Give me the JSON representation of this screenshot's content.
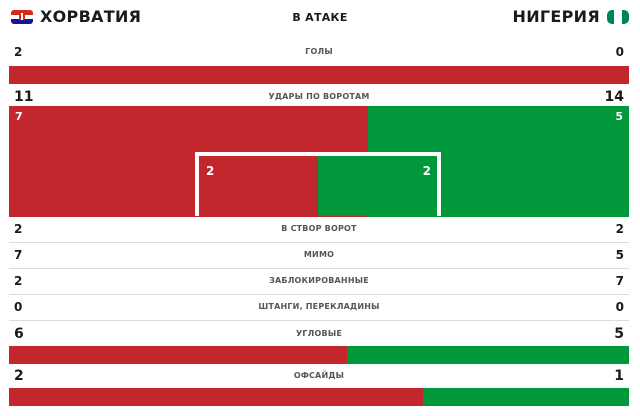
{
  "header": {
    "home_team": "ХОРВАТИЯ",
    "away_team": "НИГЕРИЯ",
    "section_title": "В АТАКЕ"
  },
  "icons": {
    "home_flag": "croatia-flag-icon",
    "away_flag": "nigeria-flag-icon"
  },
  "colors": {
    "home": "#c1272d",
    "away": "#00983a"
  },
  "stats": {
    "goals": {
      "label": "ГОЛЫ",
      "home": "2",
      "away": "0",
      "home_share": 1.0
    },
    "shots": {
      "label": "УДАРЫ ПО ВОРОТАМ",
      "home": "11",
      "away": "14"
    },
    "shots_off_target_graphic": {
      "home": "7",
      "away": "5"
    },
    "shots_on_target_graphic": {
      "home": "2",
      "away": "2"
    },
    "on_target": {
      "label": "В СТВОР ВОРОТ",
      "home": "2",
      "away": "2"
    },
    "wide": {
      "label": "МИМО",
      "home": "7",
      "away": "5"
    },
    "blocked": {
      "label": "ЗАБЛОКИРОВАННЫЕ",
      "home": "2",
      "away": "7"
    },
    "woodwork": {
      "label": "ШТАНГИ, ПЕРЕКЛАДИНЫ",
      "home": "0",
      "away": "0"
    },
    "corners": {
      "label": "УГЛОВЫЕ",
      "home": "6",
      "away": "5",
      "home_share": 0.545
    },
    "offsides": {
      "label": "ОФСАЙДЫ",
      "home": "2",
      "away": "1",
      "home_share": 0.667
    }
  }
}
